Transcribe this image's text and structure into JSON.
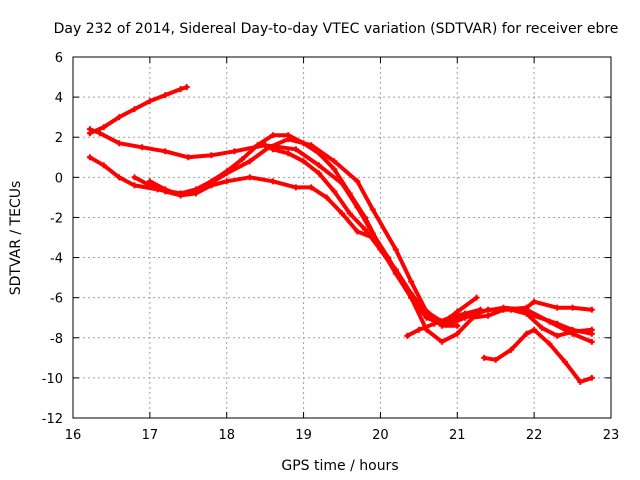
{
  "chart_data": {
    "type": "line",
    "title": "Day 232 of 2014, Sidereal Day-to-day VTEC variation (SDTVAR) for receiver ebre",
    "xlabel": "GPS time / hours",
    "ylabel": "SDTVAR / TECUs",
    "xlim": [
      16,
      23
    ],
    "ylim": [
      -12,
      6
    ],
    "xticks": [
      16,
      17,
      18,
      19,
      20,
      21,
      22,
      23
    ],
    "yticks": [
      -12,
      -10,
      -8,
      -6,
      -4,
      -2,
      0,
      2,
      4,
      6
    ],
    "grid": true,
    "line_color": "#ff0000",
    "series": [
      {
        "name": "trace-1",
        "x": [
          16.22,
          16.4,
          16.6,
          16.8,
          17.0,
          17.2,
          17.4,
          17.48
        ],
        "y": [
          2.2,
          2.5,
          3.0,
          3.4,
          3.8,
          4.1,
          4.4,
          4.5
        ]
      },
      {
        "name": "trace-2",
        "x": [
          16.22,
          16.35,
          16.6,
          16.9,
          17.2,
          17.5,
          17.8,
          18.1,
          18.5,
          18.9,
          19.2,
          19.5,
          19.7,
          19.9,
          20.1,
          20.3,
          20.5,
          20.7,
          20.9,
          21.1,
          21.4,
          21.7,
          22.0,
          22.3,
          22.5,
          22.75
        ],
        "y": [
          2.4,
          2.2,
          1.7,
          1.5,
          1.3,
          1.0,
          1.1,
          1.3,
          1.6,
          1.4,
          0.6,
          -0.3,
          -1.5,
          -2.8,
          -4.0,
          -5.3,
          -6.3,
          -7.0,
          -7.3,
          -7.0,
          -6.6,
          -6.6,
          -6.9,
          -7.3,
          -7.6,
          -7.8
        ]
      },
      {
        "name": "trace-3",
        "x": [
          16.22,
          16.4,
          16.6,
          16.8,
          17.1,
          17.4,
          17.7,
          18.0,
          18.3,
          18.55,
          18.8,
          19.1,
          19.4,
          19.7,
          19.9,
          20.2,
          20.4,
          20.6,
          20.8,
          21.0,
          21.3,
          21.6,
          21.9,
          22.2,
          22.5,
          22.75
        ],
        "y": [
          1.0,
          0.6,
          0.0,
          -0.4,
          -0.6,
          -0.8,
          -0.5,
          0.2,
          0.8,
          1.5,
          1.9,
          1.6,
          0.8,
          -0.2,
          -1.6,
          -3.6,
          -5.2,
          -6.7,
          -7.2,
          -7.0,
          -6.7,
          -6.5,
          -6.6,
          -7.2,
          -7.8,
          -8.2
        ]
      },
      {
        "name": "trace-4",
        "x": [
          16.8,
          17.0,
          17.2,
          17.4,
          17.6,
          17.8,
          18.0,
          18.2,
          18.4,
          18.6,
          18.8,
          19.0,
          19.2,
          19.4,
          19.6,
          19.8,
          20.0,
          20.2,
          20.4,
          20.6,
          20.8,
          21.0,
          21.25
        ],
        "y": [
          0.0,
          -0.4,
          -0.7,
          -0.9,
          -0.6,
          -0.2,
          0.3,
          0.9,
          1.6,
          2.1,
          2.1,
          1.7,
          1.2,
          0.4,
          -0.8,
          -2.0,
          -3.5,
          -4.8,
          -6.0,
          -7.0,
          -7.3,
          -6.7,
          -6.0
        ]
      },
      {
        "name": "trace-5",
        "x": [
          17.0,
          17.2,
          17.4,
          17.6,
          17.8,
          18.0,
          18.3,
          18.6,
          18.9,
          19.1,
          19.3,
          19.5,
          19.7,
          19.9,
          20.0,
          20.2,
          20.4,
          20.6,
          20.8,
          21.0,
          21.2,
          21.4,
          21.6,
          21.9,
          22.0,
          22.3,
          22.5,
          22.75
        ],
        "y": [
          -0.2,
          -0.6,
          -0.9,
          -0.8,
          -0.4,
          -0.2,
          0.0,
          -0.2,
          -0.5,
          -0.5,
          -1.0,
          -1.8,
          -2.7,
          -3.0,
          -3.6,
          -4.7,
          -6.0,
          -7.6,
          -8.2,
          -7.8,
          -7.0,
          -6.9,
          -6.6,
          -6.5,
          -6.2,
          -6.5,
          -6.5,
          -6.6
        ]
      },
      {
        "name": "trace-6",
        "x": [
          18.6,
          18.8,
          19.0,
          19.2,
          19.4,
          19.6,
          19.8,
          20.0,
          20.2,
          20.4,
          20.6,
          20.8,
          21.0
        ],
        "y": [
          1.4,
          1.2,
          0.8,
          0.2,
          -0.7,
          -1.8,
          -2.6,
          -3.6,
          -4.6,
          -5.8,
          -6.8,
          -7.4,
          -7.4
        ]
      },
      {
        "name": "trace-7",
        "x": [
          20.35,
          20.5,
          20.7,
          20.9,
          21.1,
          21.3
        ],
        "y": [
          -7.9,
          -7.6,
          -7.3,
          -7.0,
          -6.8,
          -6.6
        ]
      },
      {
        "name": "trace-8",
        "x": [
          21.35,
          21.5,
          21.7,
          21.9,
          22.0,
          22.2,
          22.4,
          22.6,
          22.75
        ],
        "y": [
          -9.0,
          -9.1,
          -8.6,
          -7.8,
          -7.6,
          -8.3,
          -9.2,
          -10.2,
          -10.0
        ]
      },
      {
        "name": "trace-9",
        "x": [
          21.9,
          22.1,
          22.3,
          22.5,
          22.75
        ],
        "y": [
          -6.8,
          -7.5,
          -7.9,
          -7.7,
          -7.6
        ]
      }
    ]
  }
}
